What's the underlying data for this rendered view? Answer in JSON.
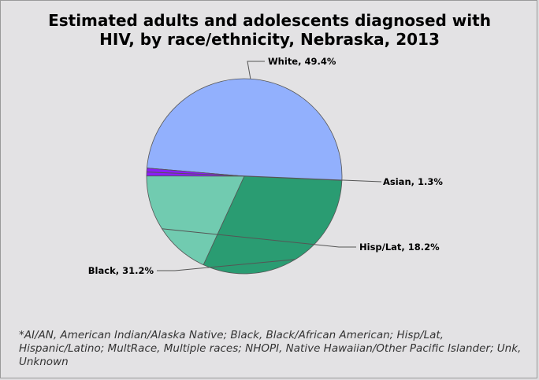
{
  "title": {
    "line1": "Estimated adults and adolescents diagnosed with",
    "line2": "HIV, by race/ethnicity, Nebraska, 2013"
  },
  "chart_data": {
    "type": "pie",
    "title": "Estimated adults and adolescents diagnosed with HIV, by race/ethnicity, Nebraska, 2013",
    "slices": [
      {
        "label": "White, 49.4%",
        "category": "White",
        "value": 49.4,
        "color": "#92b0fd"
      },
      {
        "label": "Asian, 1.3%",
        "category": "Asian",
        "value": 1.3,
        "color": "#8a1ff5"
      },
      {
        "label": "Hisp/Lat, 18.2%",
        "category": "Hisp/Lat",
        "value": 18.2,
        "color": "#71cbb0"
      },
      {
        "label": "Black, 31.2%",
        "category": "Black",
        "value": 31.2,
        "color": "#2a9c72"
      }
    ]
  },
  "footnote": "*AI/AN, American Indian/Alaska Native; Black, Black/African American; Hisp/Lat, Hispanic/Latino; MultRace, Multiple races; NHOPI, Native Hawaiian/Other Pacific Islander; Unk, Unknown"
}
